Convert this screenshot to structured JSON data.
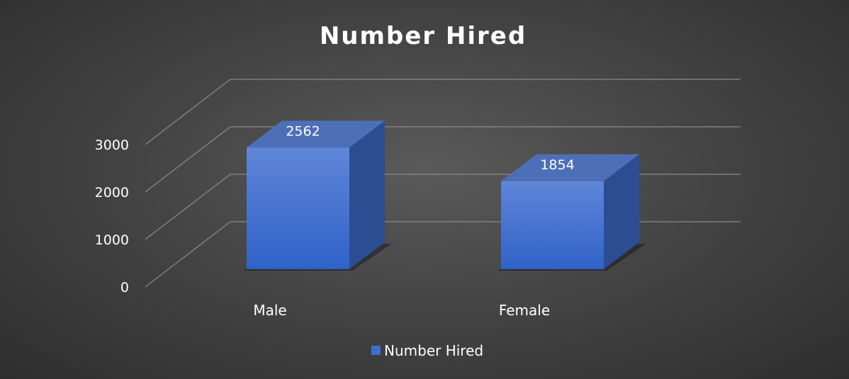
{
  "chart_data": {
    "type": "bar",
    "title": "Number Hired",
    "categories": [
      "Male",
      "Female"
    ],
    "series": [
      {
        "name": "Number Hired",
        "values": [
          2562,
          1854
        ],
        "color": "#3f6fcf"
      }
    ],
    "ylim": [
      0,
      3000
    ],
    "yticks": [
      0,
      1000,
      2000,
      3000
    ],
    "grid": true,
    "legend_position": "bottom",
    "style": "3d-column"
  },
  "colors": {
    "background": "#444444",
    "bar_front_top": "#5f86d8",
    "bar_front_bottom": "#3062c8",
    "bar_side": "#2c4d92",
    "bar_top": "#4d6fb8",
    "gridline": "#8a8a8a",
    "text": "#ffffff"
  }
}
